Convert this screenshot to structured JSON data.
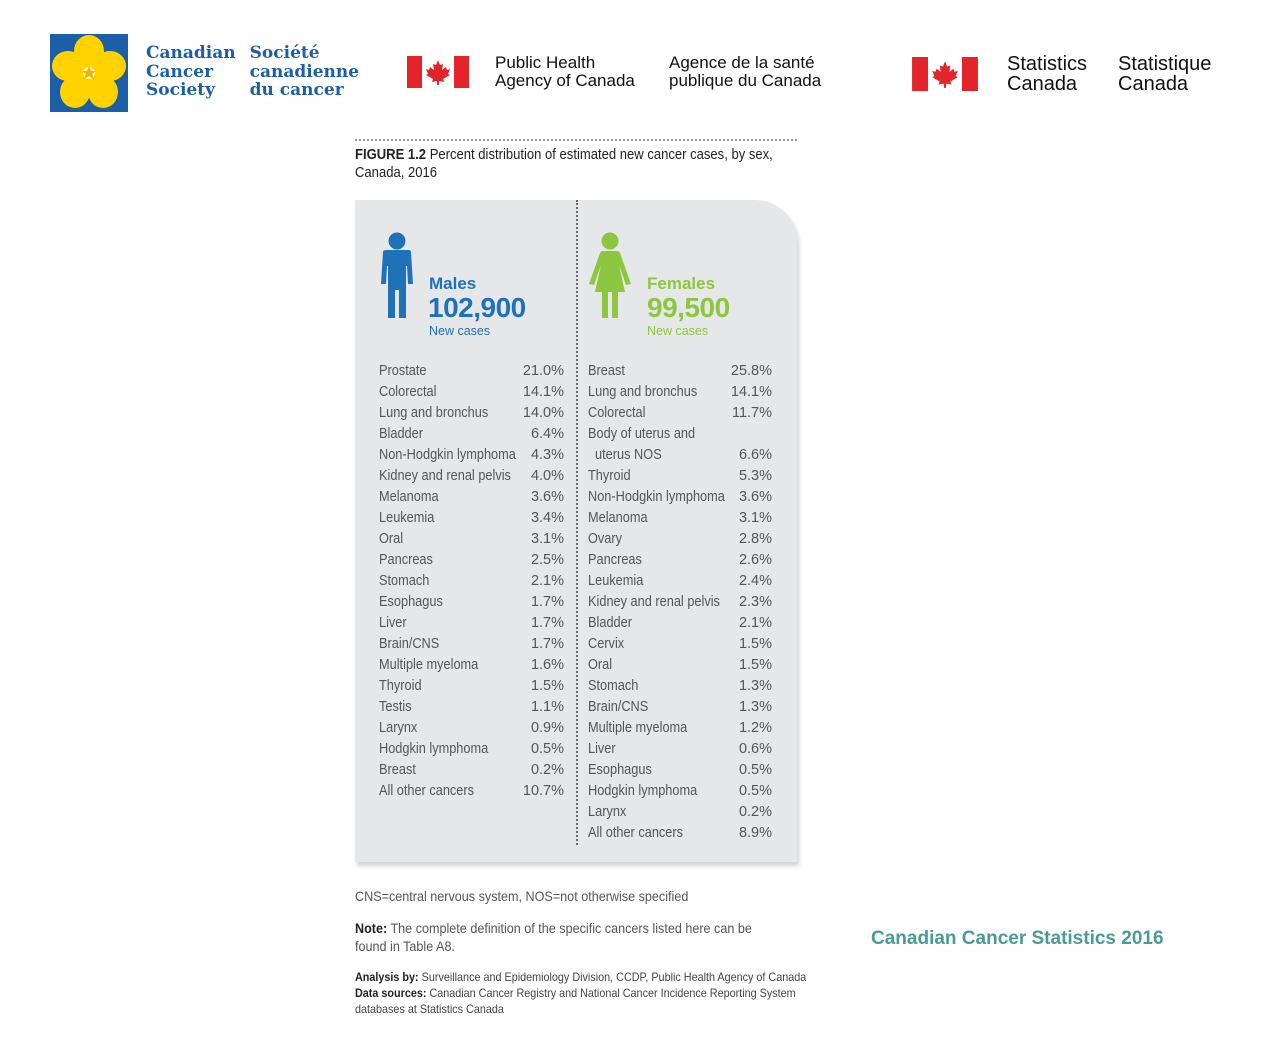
{
  "header": {
    "ccs": {
      "en": [
        "Canadian",
        "Cancer",
        "Society"
      ],
      "fr": [
        "Société",
        "canadienne",
        "du cancer"
      ]
    },
    "phac": {
      "en": [
        "Public Health",
        "Agency of Canada"
      ],
      "fr": [
        "Agence de la santé",
        "publique du Canada"
      ]
    },
    "statcan": {
      "en": [
        "Statistics",
        "Canada"
      ],
      "fr": [
        "Statistique",
        "Canada"
      ]
    }
  },
  "figure": {
    "label": "FIGURE 1.2",
    "title_line1": "Percent distribution of estimated new cancer cases, by sex,",
    "title_line2": "Canada, 2016",
    "males": {
      "label": "Males",
      "total": "102,900",
      "sub": "New cases",
      "rows": [
        {
          "site": "Prostate",
          "pct": "21.0%"
        },
        {
          "site": "Colorectal",
          "pct": "14.1%"
        },
        {
          "site": "Lung and bronchus",
          "pct": "14.0%"
        },
        {
          "site": "Bladder",
          "pct": "6.4%"
        },
        {
          "site": "Non-Hodgkin lymphoma",
          "pct": "4.3%"
        },
        {
          "site": "Kidney and renal pelvis",
          "pct": "4.0%"
        },
        {
          "site": "Melanoma",
          "pct": "3.6%"
        },
        {
          "site": "Leukemia",
          "pct": "3.4%"
        },
        {
          "site": "Oral",
          "pct": "3.1%"
        },
        {
          "site": "Pancreas",
          "pct": "2.5%"
        },
        {
          "site": "Stomach",
          "pct": "2.1%"
        },
        {
          "site": "Esophagus",
          "pct": "1.7%"
        },
        {
          "site": "Liver",
          "pct": "1.7%"
        },
        {
          "site": "Brain/CNS",
          "pct": "1.7%"
        },
        {
          "site": "Multiple myeloma",
          "pct": "1.6%"
        },
        {
          "site": "Thyroid",
          "pct": "1.5%"
        },
        {
          "site": "Testis",
          "pct": "1.1%"
        },
        {
          "site": "Larynx",
          "pct": "0.9%"
        },
        {
          "site": "Hodgkin lymphoma",
          "pct": "0.5%"
        },
        {
          "site": "Breast",
          "pct": "0.2%"
        },
        {
          "site": "All other cancers",
          "pct": "10.7%"
        }
      ]
    },
    "females": {
      "label": "Females",
      "total": "99,500",
      "sub": "New cases",
      "rows": [
        {
          "site": "Breast",
          "pct": "25.8%"
        },
        {
          "site": "Lung and bronchus",
          "pct": "14.1%"
        },
        {
          "site": "Colorectal",
          "pct": "11.7%"
        },
        {
          "site": "Body of uterus and",
          "pct": ""
        },
        {
          "site": "uterus NOS",
          "pct": "6.6%",
          "cont": true
        },
        {
          "site": "Thyroid",
          "pct": "5.3%"
        },
        {
          "site": "Non-Hodgkin lymphoma",
          "pct": "3.6%"
        },
        {
          "site": "Melanoma",
          "pct": "3.1%"
        },
        {
          "site": "Ovary",
          "pct": "2.8%"
        },
        {
          "site": "Pancreas",
          "pct": "2.6%"
        },
        {
          "site": "Leukemia",
          "pct": "2.4%"
        },
        {
          "site": "Kidney and renal pelvis",
          "pct": "2.3%"
        },
        {
          "site": "Bladder",
          "pct": "2.1%"
        },
        {
          "site": "Cervix",
          "pct": "1.5%"
        },
        {
          "site": "Oral",
          "pct": "1.5%"
        },
        {
          "site": "Stomach",
          "pct": "1.3%"
        },
        {
          "site": "Brain/CNS",
          "pct": "1.3%"
        },
        {
          "site": "Multiple myeloma",
          "pct": "1.2%"
        },
        {
          "site": "Liver",
          "pct": "0.6%"
        },
        {
          "site": "Esophagus",
          "pct": "0.5%"
        },
        {
          "site": "Hodgkin lymphoma",
          "pct": "0.5%"
        },
        {
          "site": "Larynx",
          "pct": "0.2%"
        },
        {
          "site": "All other cancers",
          "pct": "8.9%"
        }
      ]
    },
    "abbrev": "CNS=central nervous system, NOS=not otherwise specified",
    "note_label": "Note:",
    "note_line1": "The complete definition of the specific cancers listed here can be",
    "note_line2": "found in Table A8.",
    "analysis_label": "Analysis by:",
    "analysis_text": "Surveillance and Epidemiology Division, CCDP, Public Health Agency of Canada",
    "sources_label": "Data sources:",
    "sources_line1": "Canadian Cancer Registry and National Cancer Incidence Reporting System",
    "sources_line2": "databases at Statistics Canada"
  },
  "report_title": "Canadian Cancer Statistics 2016",
  "colors": {
    "male": "#1f72b8",
    "female": "#8dc63f",
    "brand_blue": "#1d5ea8",
    "flag_red": "#e3242b",
    "title_teal": "#4a9b95"
  }
}
